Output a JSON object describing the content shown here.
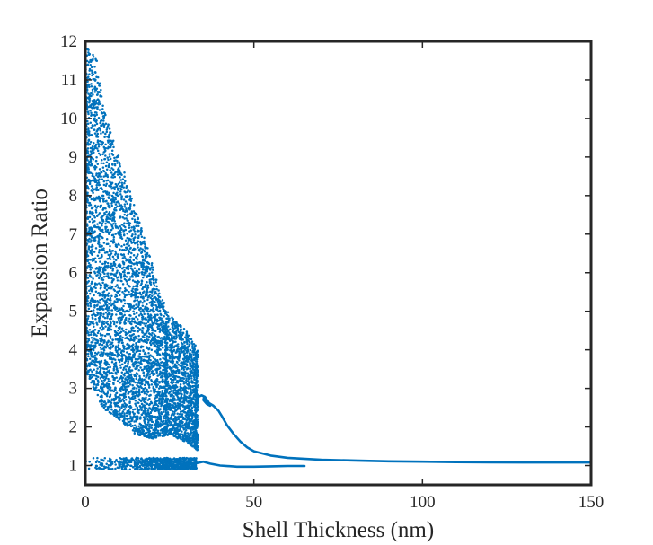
{
  "chart_data": {
    "type": "scatter",
    "title": "",
    "xlabel": "Shell Thickness (nm)",
    "ylabel": "Expansion Ratio",
    "xlim": [
      0,
      150
    ],
    "ylim": [
      0.5,
      12
    ],
    "xticks": [
      0,
      50,
      100,
      150
    ],
    "xtick_labels": [
      "0",
      "50",
      "100",
      "150"
    ],
    "yticks": [
      1,
      2,
      3,
      4,
      5,
      6,
      7,
      8,
      9,
      10,
      11,
      12
    ],
    "ytick_labels": [
      "1",
      "2",
      "3",
      "4",
      "5",
      "6",
      "7",
      "8",
      "9",
      "10",
      "11",
      "12"
    ],
    "grid": false,
    "box": true,
    "color": "#0072BD",
    "series": [
      {
        "name": "main-trend-curve",
        "kind": "line",
        "x": [
          33.0,
          33.5,
          34.5,
          35.5,
          36.5,
          37.0,
          36.0,
          35.0,
          35.2,
          36.5,
          38.0,
          39.5,
          40.5,
          42.0,
          44.0,
          46.0,
          48.0,
          50.0,
          55.0,
          60.0,
          70.0,
          80.0,
          90.0,
          100.0,
          110.0,
          120.0,
          130.0,
          140.0,
          150.0
        ],
        "y": [
          2.7,
          2.78,
          2.82,
          2.78,
          2.65,
          2.55,
          2.6,
          2.7,
          2.76,
          2.63,
          2.55,
          2.42,
          2.28,
          2.05,
          1.82,
          1.62,
          1.47,
          1.37,
          1.26,
          1.2,
          1.15,
          1.13,
          1.11,
          1.1,
          1.09,
          1.085,
          1.08,
          1.08,
          1.08
        ]
      },
      {
        "name": "lower-branch-curve",
        "kind": "line",
        "x": [
          24.0,
          27.0,
          30.0,
          33.0,
          35.0,
          37.0,
          40.0,
          45.0,
          50.0,
          55.0,
          60.0,
          65.0
        ],
        "y": [
          1.0,
          1.02,
          1.04,
          1.06,
          1.1,
          1.05,
          1.0,
          0.97,
          0.97,
          0.98,
          0.99,
          0.99
        ]
      },
      {
        "name": "scatter-points",
        "kind": "scatter",
        "description_of_envelope": "dense cloud of points",
        "envelope_upper": [
          [
            0,
            11.8
          ],
          [
            3,
            11.8
          ],
          [
            5,
            10.5
          ],
          [
            8,
            9.5
          ],
          [
            10,
            9.0
          ],
          [
            12,
            8.5
          ],
          [
            15,
            7.6
          ],
          [
            18,
            6.8
          ],
          [
            20,
            6.2
          ],
          [
            22,
            5.5
          ],
          [
            25,
            4.9
          ],
          [
            30,
            4.5
          ],
          [
            33.5,
            4.0
          ]
        ],
        "envelope_lower": [
          [
            0,
            3.5
          ],
          [
            5,
            2.5
          ],
          [
            10,
            2.2
          ],
          [
            15,
            1.8
          ],
          [
            20,
            1.7
          ],
          [
            25,
            1.8
          ],
          [
            30,
            1.6
          ],
          [
            33.5,
            1.4
          ]
        ],
        "low_band_x": [
          0,
          33
        ],
        "low_band_y": [
          0.9,
          1.2
        ]
      }
    ]
  }
}
